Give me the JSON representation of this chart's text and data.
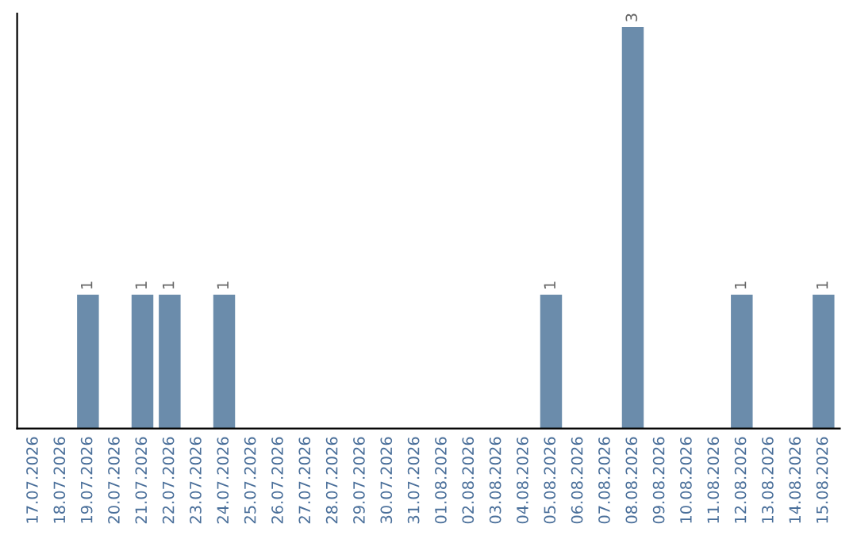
{
  "chart_data": {
    "type": "bar",
    "categories": [
      "17.07.2026",
      "18.07.2026",
      "19.07.2026",
      "20.07.2026",
      "21.07.2026",
      "22.07.2026",
      "23.07.2026",
      "24.07.2026",
      "25.07.2026",
      "26.07.2026",
      "27.07.2026",
      "28.07.2026",
      "29.07.2026",
      "30.07.2026",
      "31.07.2026",
      "01.08.2026",
      "02.08.2026",
      "03.08.2026",
      "04.08.2026",
      "05.08.2026",
      "06.08.2026",
      "07.08.2026",
      "08.08.2026",
      "09.08.2026",
      "10.08.2026",
      "11.08.2026",
      "12.08.2026",
      "13.08.2026",
      "14.08.2026",
      "15.08.2026"
    ],
    "values": [
      0,
      0,
      1,
      0,
      1,
      1,
      0,
      1,
      0,
      0,
      0,
      0,
      0,
      0,
      0,
      0,
      0,
      0,
      0,
      1,
      0,
      0,
      3,
      0,
      0,
      0,
      1,
      0,
      0,
      1
    ],
    "color": "#6b8cab",
    "ylim": [
      0,
      3.1
    ],
    "tick_labels": "x",
    "grid": false,
    "legend": false,
    "value_labels": [
      null,
      null,
      "1",
      null,
      "1",
      "1",
      null,
      "1",
      null,
      null,
      null,
      null,
      null,
      null,
      null,
      null,
      null,
      null,
      null,
      "1",
      null,
      null,
      "3",
      null,
      null,
      null,
      "1",
      null,
      null,
      "1"
    ]
  }
}
